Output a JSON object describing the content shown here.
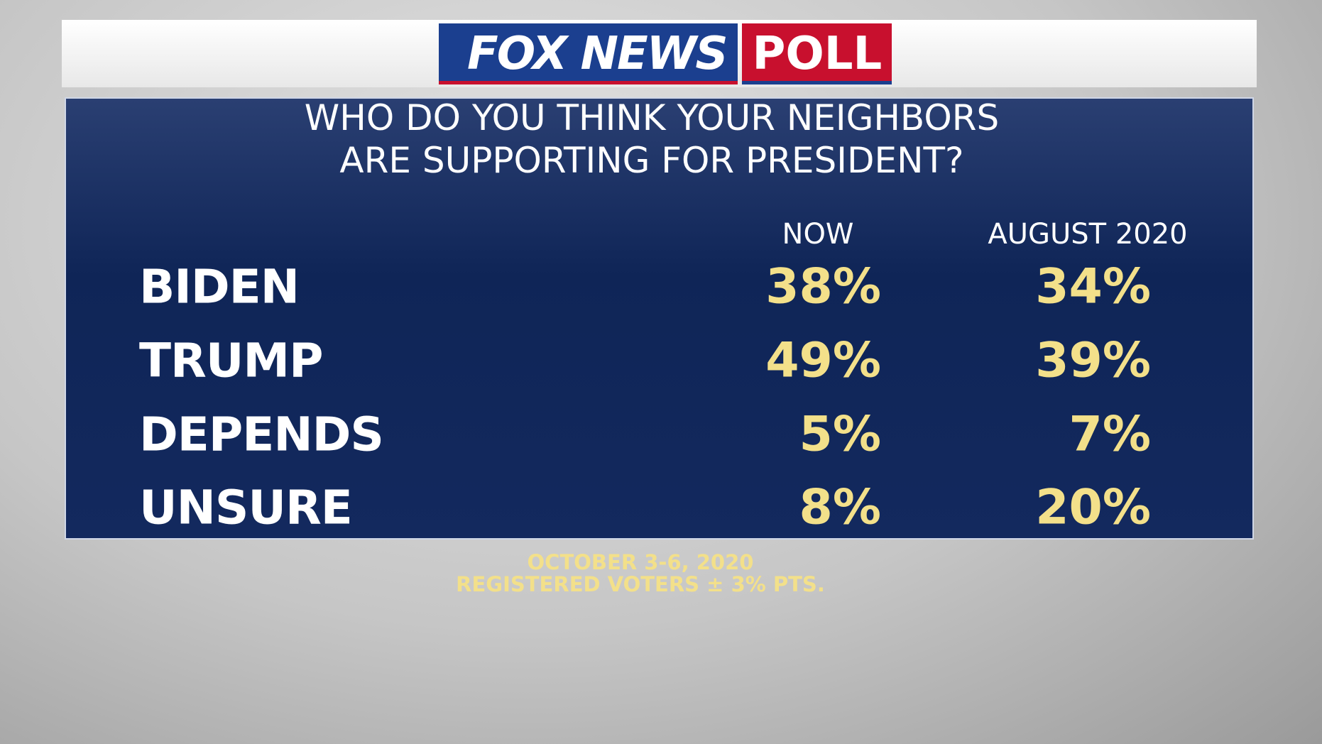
{
  "header": {
    "brand": "FOX NEWS",
    "badge": "POLL"
  },
  "title_lines": [
    "WHO DO YOU THINK YOUR NEIGHBORS",
    "ARE SUPPORTING FOR PRESIDENT?"
  ],
  "table": {
    "columns": [
      "NOW",
      "AUGUST 2020"
    ],
    "rows": [
      [
        "BIDEN",
        "38%",
        "34%"
      ],
      [
        "TRUMP",
        "49%",
        "39%"
      ],
      [
        "DEPENDS",
        "5%",
        "7%"
      ],
      [
        "UNSURE",
        "8%",
        "20%"
      ]
    ]
  },
  "footer": [
    "OCTOBER 3-6, 2020",
    "REGISTERED VOTERS ± 3% PTS."
  ]
}
